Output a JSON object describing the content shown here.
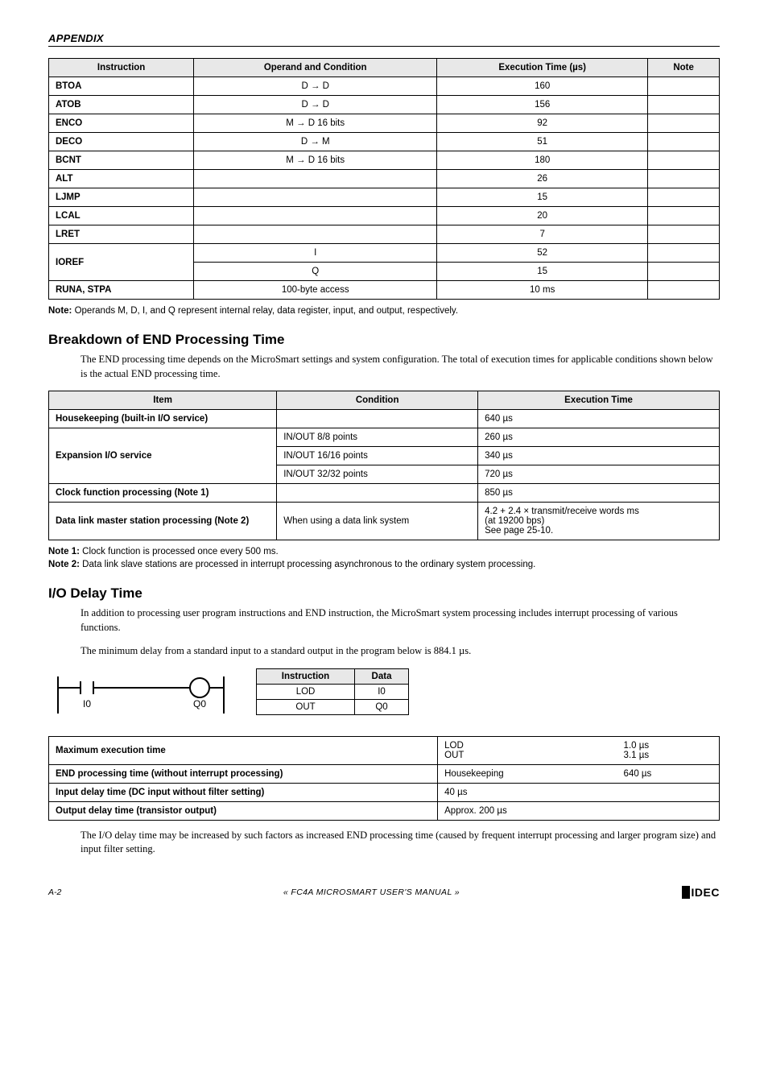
{
  "header": "APPENDIX",
  "table1": {
    "headers": [
      "Instruction",
      "Operand and Condition",
      "Execution Time (µs)",
      "Note"
    ],
    "rows": [
      [
        "BTOA",
        "D → D",
        "160",
        ""
      ],
      [
        "ATOB",
        "D → D",
        "156",
        ""
      ],
      [
        "ENCO",
        "M → D 16 bits",
        "92",
        ""
      ],
      [
        "DECO",
        "D → M",
        "51",
        ""
      ],
      [
        "BCNT",
        "M → D 16 bits",
        "180",
        ""
      ],
      [
        "ALT",
        "",
        "26",
        ""
      ],
      [
        "LJMP",
        "",
        "15",
        ""
      ],
      [
        "LCAL",
        "",
        "20",
        ""
      ],
      [
        "LRET",
        "",
        "7",
        ""
      ]
    ],
    "ioref": {
      "label": "IOREF",
      "r1": [
        "I",
        "52",
        ""
      ],
      "r2": [
        "Q",
        "15",
        ""
      ]
    },
    "runa": [
      "RUNA, STPA",
      "100-byte access",
      "10 ms",
      ""
    ]
  },
  "note1": {
    "label": "Note:",
    "text": " Operands M, D, I, and Q represent internal relay, data register, input, and output, respectively."
  },
  "sec2": {
    "title": "Breakdown of END Processing Time",
    "body": "The END processing time depends on the MicroSmart settings and system configuration. The total of execution times for applicable conditions shown below is the actual END processing time."
  },
  "table2": {
    "headers": [
      "Item",
      "Condition",
      "Execution Time"
    ],
    "row_hk": [
      "Housekeeping (built-in I/O service)",
      "",
      "640 µs"
    ],
    "exp_label": "Expansion I/O service",
    "exp_rows": [
      [
        "IN/OUT 8/8 points",
        "260 µs"
      ],
      [
        "IN/OUT 16/16 points",
        "340 µs"
      ],
      [
        "IN/OUT 32/32 points",
        "720 µs"
      ]
    ],
    "row_clock": [
      "Clock function processing (Note 1)",
      "",
      "850 µs"
    ],
    "row_dlm": [
      "Data link master station processing (Note 2)",
      "When using a data link system",
      "4.2 + 2.4 × transmit/receive words ms\n(at 19200 bps)\nSee page 25-10."
    ]
  },
  "notes2": [
    {
      "label": "Note 1:",
      "text": " Clock function is processed once every 500 ms."
    },
    {
      "label": "Note 2:",
      "text": " Data link slave stations are processed in interrupt processing asynchronous to the ordinary system processing."
    }
  ],
  "sec3": {
    "title": "I/O Delay Time",
    "body1": "In addition to processing user program instructions and END instruction, the MicroSmart system processing includes interrupt processing of various functions.",
    "body2": "The minimum delay from a standard input to a standard output in the program below is 884.1 µs."
  },
  "ladder": {
    "in": "I0",
    "out": "Q0"
  },
  "mini_table": {
    "headers": [
      "Instruction",
      "Data"
    ],
    "rows": [
      [
        "LOD",
        "I0"
      ],
      [
        "OUT",
        "Q0"
      ]
    ]
  },
  "table3": {
    "row1": {
      "label": "Maximum execution time",
      "c1a": "LOD",
      "c1b": "OUT",
      "c2a": "1.0 µs",
      "c2b": "3.1 µs"
    },
    "row2": {
      "label": "END processing time (without interrupt processing)",
      "c1": "Housekeeping",
      "c2": "640 µs"
    },
    "row3": {
      "label": "Input delay time (DC input without filter setting)",
      "val": "40 µs"
    },
    "row4": {
      "label": "Output delay time (transistor output)",
      "val": "Approx. 200 µs"
    }
  },
  "tail_para": "The I/O delay time may be increased by such factors as increased END processing time (caused by frequent interrupt processing and larger program size) and input filter setting.",
  "footer": {
    "left": "A-2",
    "center": "« FC4A MICROSMART USER'S MANUAL »",
    "right": "IDEC"
  }
}
